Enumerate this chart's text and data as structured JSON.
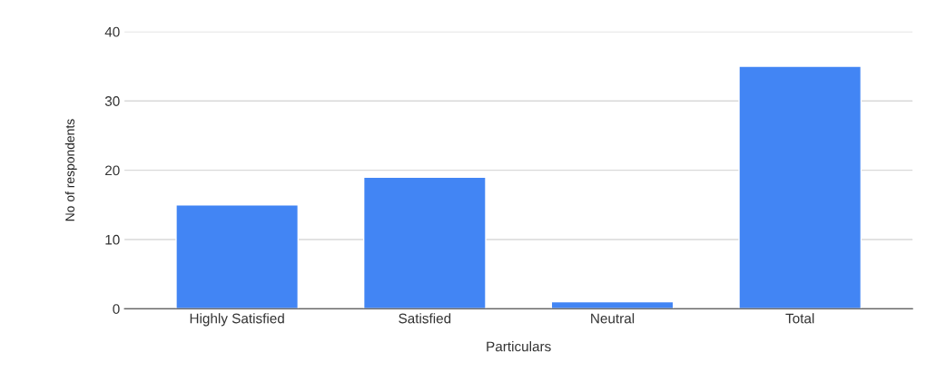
{
  "chart_data": {
    "type": "bar",
    "xlabel": "Particulars",
    "ylabel": "No of respondents",
    "categories": [
      "Highly Satisfied",
      "Satisfied",
      "Neutral",
      "Total"
    ],
    "values": [
      15,
      19,
      1,
      35
    ],
    "color": "#4285f4",
    "ylim": [
      0,
      40
    ],
    "yticks": [
      0,
      10,
      20,
      30,
      40
    ],
    "grid": "y"
  }
}
